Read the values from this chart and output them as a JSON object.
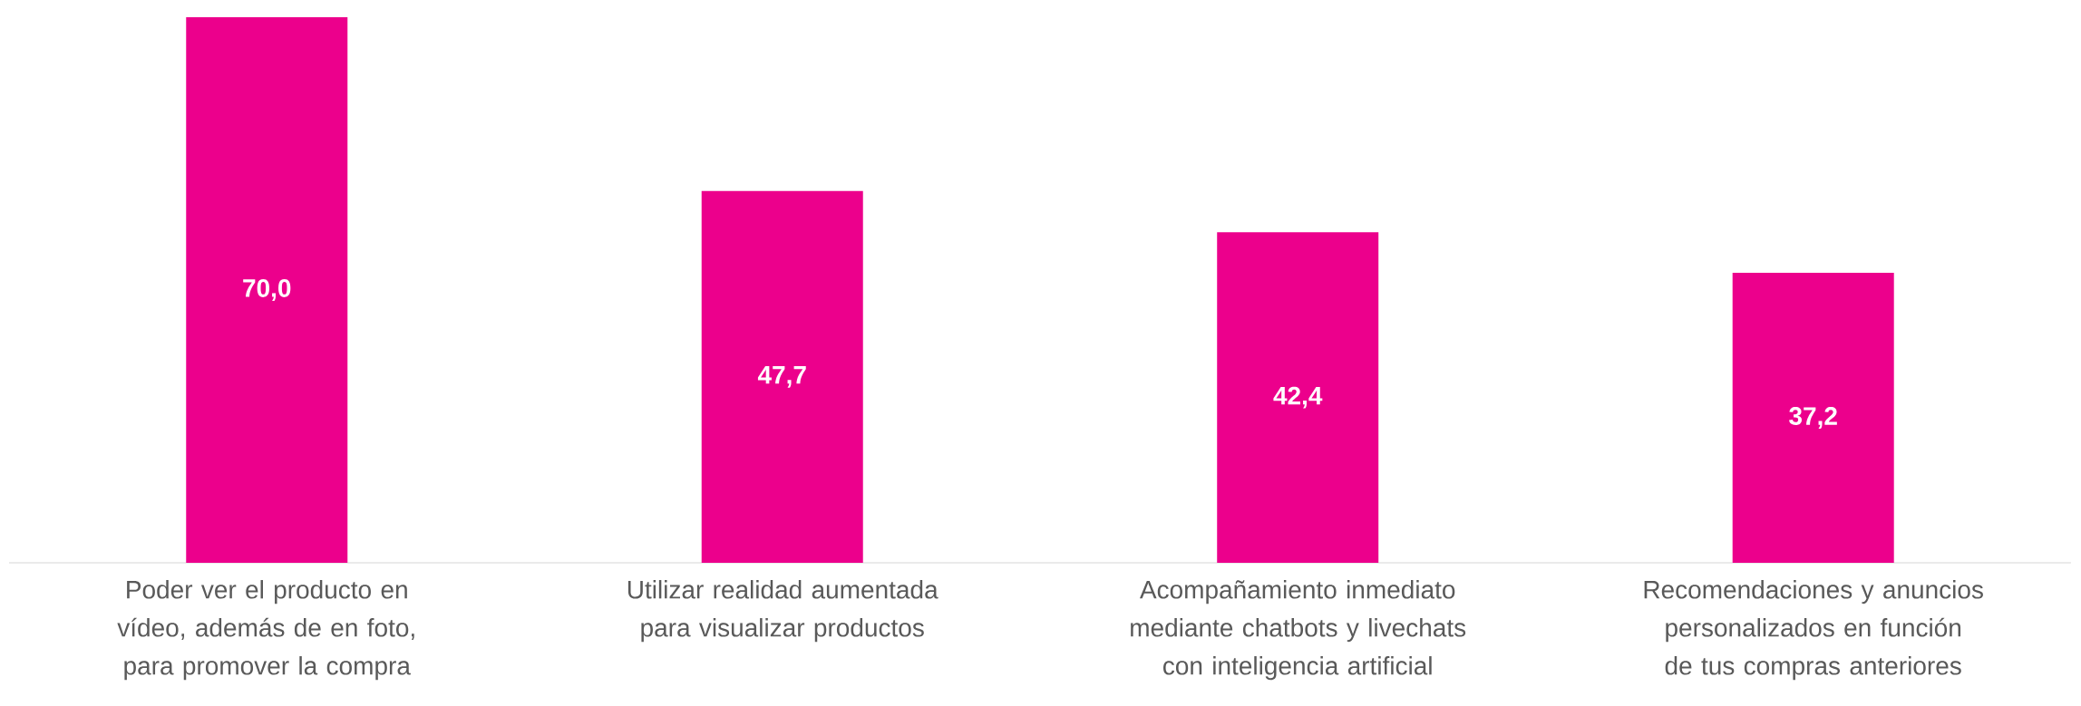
{
  "chart_data": {
    "type": "bar",
    "categories": [
      "Poder ver el producto en vídeo, además de en foto, para promover la compra",
      "Utilizar realidad aumentada para visualizar productos",
      "Acompañamiento inmediato mediante chatbots y livechats con inteligencia artificial",
      "Recomendaciones y anuncios personalizados en función de tus compras anteriores"
    ],
    "values": [
      70.0,
      47.7,
      42.4,
      37.2
    ],
    "value_labels": [
      "70,0",
      "47,7",
      "42,4",
      "37,2"
    ],
    "color": "#ec008c"
  }
}
